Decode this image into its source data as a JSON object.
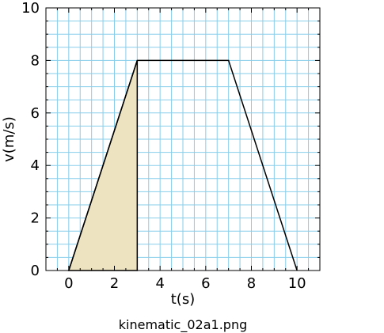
{
  "chart_data": {
    "type": "line",
    "title": "",
    "xlabel": "t(s)",
    "ylabel": "v(m/s)",
    "xlim": [
      -1,
      11
    ],
    "ylim": [
      0,
      10
    ],
    "x_ticks": [
      0,
      2,
      4,
      6,
      8,
      10
    ],
    "y_ticks": [
      0,
      2,
      4,
      6,
      8,
      10
    ],
    "x_tick_labels": [
      "0",
      "2",
      "4",
      "6",
      "8",
      "10"
    ],
    "y_tick_labels": [
      "0",
      "2",
      "4",
      "6",
      "8",
      "10"
    ],
    "grid": true,
    "grid_color": "#87ceeb",
    "series": [
      {
        "x": [
          0,
          3,
          7,
          10
        ],
        "y": [
          0,
          8,
          8,
          0
        ],
        "color": "#000000"
      }
    ],
    "shaded_region": {
      "x": [
        0,
        3,
        3
      ],
      "y": [
        0,
        8,
        0
      ],
      "color": "#eee3c0"
    }
  },
  "caption": "kinematic_02a1.png"
}
